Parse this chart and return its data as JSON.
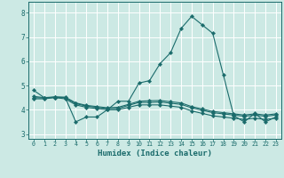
{
  "xlabel": "Humidex (Indice chaleur)",
  "xlim": [
    -0.5,
    23.5
  ],
  "ylim": [
    2.8,
    8.45
  ],
  "yticks": [
    3,
    4,
    5,
    6,
    7,
    8
  ],
  "xticks": [
    0,
    1,
    2,
    3,
    4,
    5,
    6,
    7,
    8,
    9,
    10,
    11,
    12,
    13,
    14,
    15,
    16,
    17,
    18,
    19,
    20,
    21,
    22,
    23
  ],
  "bg_color": "#cce9e4",
  "line_color": "#1a6b6b",
  "grid_color": "#ffffff",
  "lines": [
    {
      "x": [
        0,
        1,
        2,
        3,
        4,
        5,
        6,
        7,
        8,
        9,
        10,
        11,
        12,
        13,
        14,
        15,
        16,
        17,
        18,
        19,
        20,
        21,
        22,
        23
      ],
      "y": [
        4.8,
        4.5,
        4.5,
        4.5,
        3.5,
        3.7,
        3.7,
        4.0,
        4.35,
        4.35,
        5.1,
        5.2,
        5.9,
        6.35,
        7.35,
        7.85,
        7.5,
        7.15,
        5.45,
        3.75,
        3.5,
        3.85,
        3.5,
        3.7
      ]
    },
    {
      "x": [
        0,
        1,
        2,
        3,
        4,
        5,
        6,
        7,
        8,
        9,
        10,
        11,
        12,
        13,
        14,
        15,
        16,
        17,
        18,
        19,
        20,
        21,
        22,
        23
      ],
      "y": [
        4.45,
        4.45,
        4.5,
        4.45,
        4.2,
        4.1,
        4.05,
        4.0,
        4.0,
        4.1,
        4.2,
        4.2,
        4.2,
        4.15,
        4.1,
        3.95,
        3.85,
        3.75,
        3.7,
        3.65,
        3.6,
        3.65,
        3.6,
        3.65
      ]
    },
    {
      "x": [
        0,
        1,
        2,
        3,
        4,
        5,
        6,
        7,
        8,
        9,
        10,
        11,
        12,
        13,
        14,
        15,
        16,
        17,
        18,
        19,
        20,
        21,
        22,
        23
      ],
      "y": [
        4.5,
        4.48,
        4.52,
        4.5,
        4.25,
        4.15,
        4.1,
        4.05,
        4.05,
        4.18,
        4.3,
        4.3,
        4.32,
        4.27,
        4.22,
        4.08,
        3.98,
        3.88,
        3.83,
        3.78,
        3.73,
        3.78,
        3.73,
        3.78
      ]
    },
    {
      "x": [
        0,
        1,
        2,
        3,
        4,
        5,
        6,
        7,
        8,
        9,
        10,
        11,
        12,
        13,
        14,
        15,
        16,
        17,
        18,
        19,
        20,
        21,
        22,
        23
      ],
      "y": [
        4.55,
        4.5,
        4.53,
        4.52,
        4.28,
        4.18,
        4.13,
        4.08,
        4.1,
        4.22,
        4.35,
        4.37,
        4.38,
        4.33,
        4.28,
        4.13,
        4.03,
        3.93,
        3.88,
        3.83,
        3.78,
        3.83,
        3.78,
        3.83
      ]
    }
  ]
}
